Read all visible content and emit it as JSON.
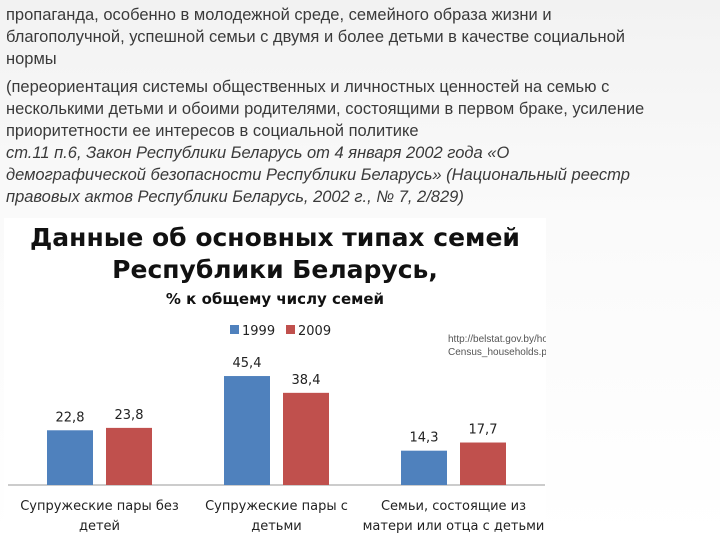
{
  "text": {
    "paragraph1": [
      "пропаганда, особенно в молодежной среде, семейного образа жизни и",
      "благополучной, успешной семьи с двумя и более детьми в качестве социальной",
      "нормы"
    ],
    "paragraph2": [
      "(переориентация системы общественных и личностных ценностей на семью с",
      "несколькими детьми и обоими родителями, состоящими в первом браке, усиление",
      "приоритетности ее интересов в социальной политике"
    ],
    "citation": [
      "ст.11 п.6, Закон Республики Беларусь от 4 января 2002 года «О",
      "демографической безопасности Республики Беларусь» (Национальный реестр",
      "правовых актов Республики Беларусь, 2002 г., № 7, 2/829)"
    ]
  },
  "source_url": [
    "http://belstat.gov.by/homep/ru/indicators/pressrel/",
    "Census_households.php"
  ],
  "chart_data": {
    "type": "bar",
    "title": [
      "Данные об основных типах семей",
      "Республики Беларусь,"
    ],
    "subtitle": "% к общему числу семей",
    "categories": [
      [
        "Супружеские пары без",
        "детей"
      ],
      [
        "Супружеские пары с",
        "детьми"
      ],
      [
        "Семьи, состоящие из",
        "матери или отца с детьми"
      ]
    ],
    "series": [
      {
        "name": "1999",
        "color": "#4f81bd",
        "values": [
          22.8,
          45.4,
          14.3
        ],
        "labels": [
          "22,8",
          "45,4",
          "14,3"
        ]
      },
      {
        "name": "2009",
        "color": "#c0504d",
        "values": [
          23.8,
          38.4,
          17.7
        ],
        "labels": [
          "23,8",
          "38,4",
          "17,7"
        ]
      }
    ],
    "legend": "top-center",
    "grid": false,
    "ylim": [
      0,
      50
    ]
  }
}
